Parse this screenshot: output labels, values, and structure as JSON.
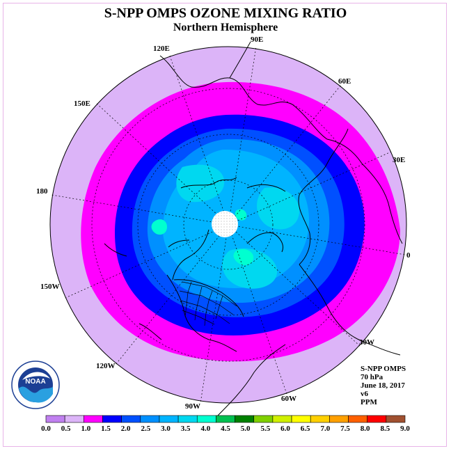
{
  "title": "S-NPP OMPS OZONE MIXING RATIO",
  "subtitle": "Northern Hemisphere",
  "longitude_labels": [
    "90E",
    "60E",
    "30E",
    "0",
    "30W",
    "60W",
    "90W",
    "120W",
    "150W",
    "180",
    "150E",
    "120E"
  ],
  "info": {
    "instrument": "S-NPP OMPS",
    "level": "70 hPa",
    "date": "June 18, 2017",
    "version": "v6",
    "units": "PPM"
  },
  "logo": {
    "text": "NOAA",
    "ring_text": "NATIONAL OCEANIC AND ATMOSPHERIC ADMINISTRATION · U.S. DEPARTMENT OF COMMERCE"
  },
  "colorbar": {
    "ticks": [
      "0.0",
      "0.5",
      "1.0",
      "1.5",
      "2.0",
      "2.5",
      "3.0",
      "3.5",
      "4.0",
      "4.5",
      "5.0",
      "5.5",
      "6.0",
      "6.5",
      "7.0",
      "7.5",
      "8.0",
      "8.5",
      "9.0"
    ],
    "colors": [
      "#c080f0",
      "#dcb4f8",
      "#ff00ff",
      "#0000ff",
      "#0050ff",
      "#0090ff",
      "#00b4ff",
      "#00d8f0",
      "#00ffd0",
      "#00c050",
      "#008000",
      "#80d000",
      "#d0f000",
      "#ffff00",
      "#ffd000",
      "#ffa000",
      "#ff6000",
      "#ff0000",
      "#a05030"
    ]
  },
  "colors": {
    "outer": "#dcb4f8",
    "band_magenta": "#ff00ff",
    "band_blue": "#0000ff",
    "band_mid": "#0050ff",
    "band_light": "#0090ff",
    "core": "#00b4ff",
    "patch": "#00d8f0",
    "hotspot": "#00ffd0"
  }
}
